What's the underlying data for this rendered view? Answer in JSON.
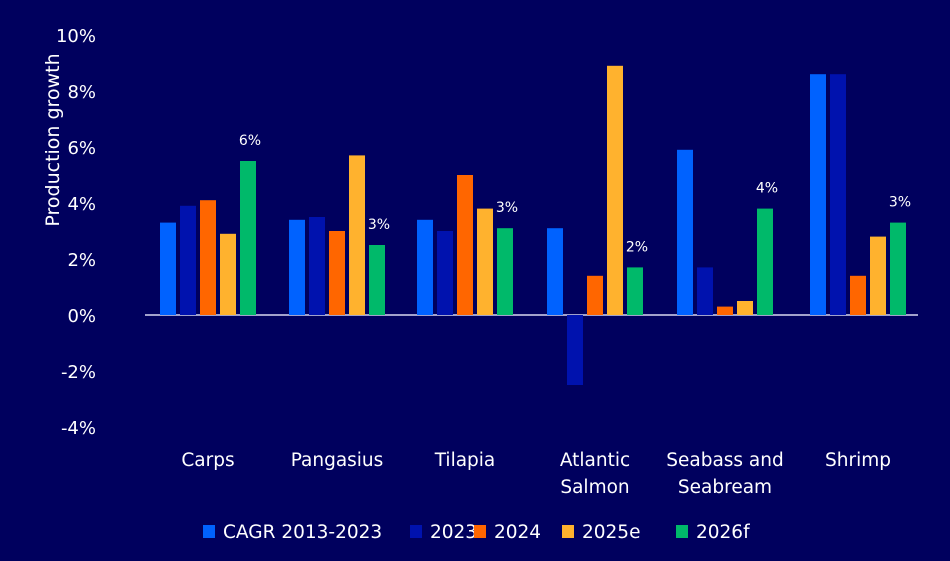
{
  "chart_data": {
    "type": "bar",
    "title": "",
    "xlabel": "",
    "ylabel": "Production growth",
    "ylim": [
      -4,
      10
    ],
    "yticks": [
      "-4%",
      "-2%",
      "0%",
      "2%",
      "4%",
      "6%",
      "8%",
      "10%"
    ],
    "ytick_values": [
      -4,
      -2,
      0,
      2,
      4,
      6,
      8,
      10
    ],
    "grid": false,
    "legend_position": "bottom",
    "categories": [
      [
        "Carps"
      ],
      [
        "Pangasius"
      ],
      [
        "Tilapia"
      ],
      [
        "Atlantic",
        "Salmon"
      ],
      [
        "Seabass and",
        "Seabream"
      ],
      [
        "Shrimp"
      ]
    ],
    "series": [
      {
        "name": "CAGR 2013-2023",
        "color": "#0062ff",
        "values": [
          3.3,
          3.4,
          3.4,
          3.1,
          5.9,
          8.6
        ]
      },
      {
        "name": "2023",
        "color": "#0012ae",
        "values": [
          3.9,
          3.5,
          3.0,
          -2.5,
          1.7,
          8.6
        ]
      },
      {
        "name": "2024",
        "color": "#ff6600",
        "values": [
          4.1,
          3.0,
          5.0,
          1.4,
          0.3,
          1.4
        ]
      },
      {
        "name": "2025e",
        "color": "#ffb22e",
        "values": [
          2.9,
          5.7,
          3.8,
          8.9,
          0.5,
          2.8
        ]
      },
      {
        "name": "2026f",
        "color": "#00b96a",
        "values": [
          5.5,
          2.5,
          3.1,
          1.7,
          3.8,
          3.3
        ]
      }
    ],
    "data_labels": {
      "series": "2026f",
      "labels": [
        "6%",
        "3%",
        "3%",
        "2%",
        "4%",
        "3%"
      ]
    }
  }
}
